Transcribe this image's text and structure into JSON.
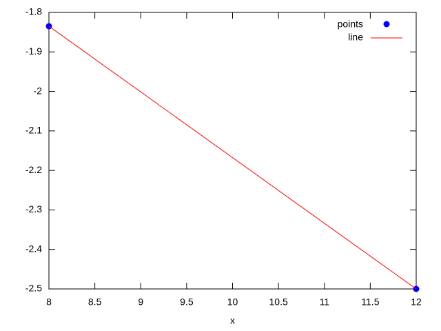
{
  "chart_data": {
    "type": "line",
    "x_label": "x",
    "series": [
      {
        "name": "points",
        "color": "#0000ff",
        "style": "points",
        "x": [
          8,
          12
        ],
        "values": [
          -1.835,
          -2.5
        ]
      },
      {
        "name": "line",
        "color": "#ff0000",
        "style": "line",
        "x": [
          8,
          12
        ],
        "values": [
          -1.835,
          -2.5
        ]
      }
    ],
    "xlim": [
      8,
      12
    ],
    "xticks": [
      8,
      8.5,
      9,
      9.5,
      10,
      10.5,
      11,
      11.5,
      12
    ],
    "ylim": [
      -2.5,
      -1.8
    ],
    "yticks": [
      -2.5,
      -2.4,
      -2.3,
      -2.2,
      -2.1,
      -2,
      -1.9,
      -1.8
    ],
    "grid": false,
    "legend": "top-right"
  }
}
